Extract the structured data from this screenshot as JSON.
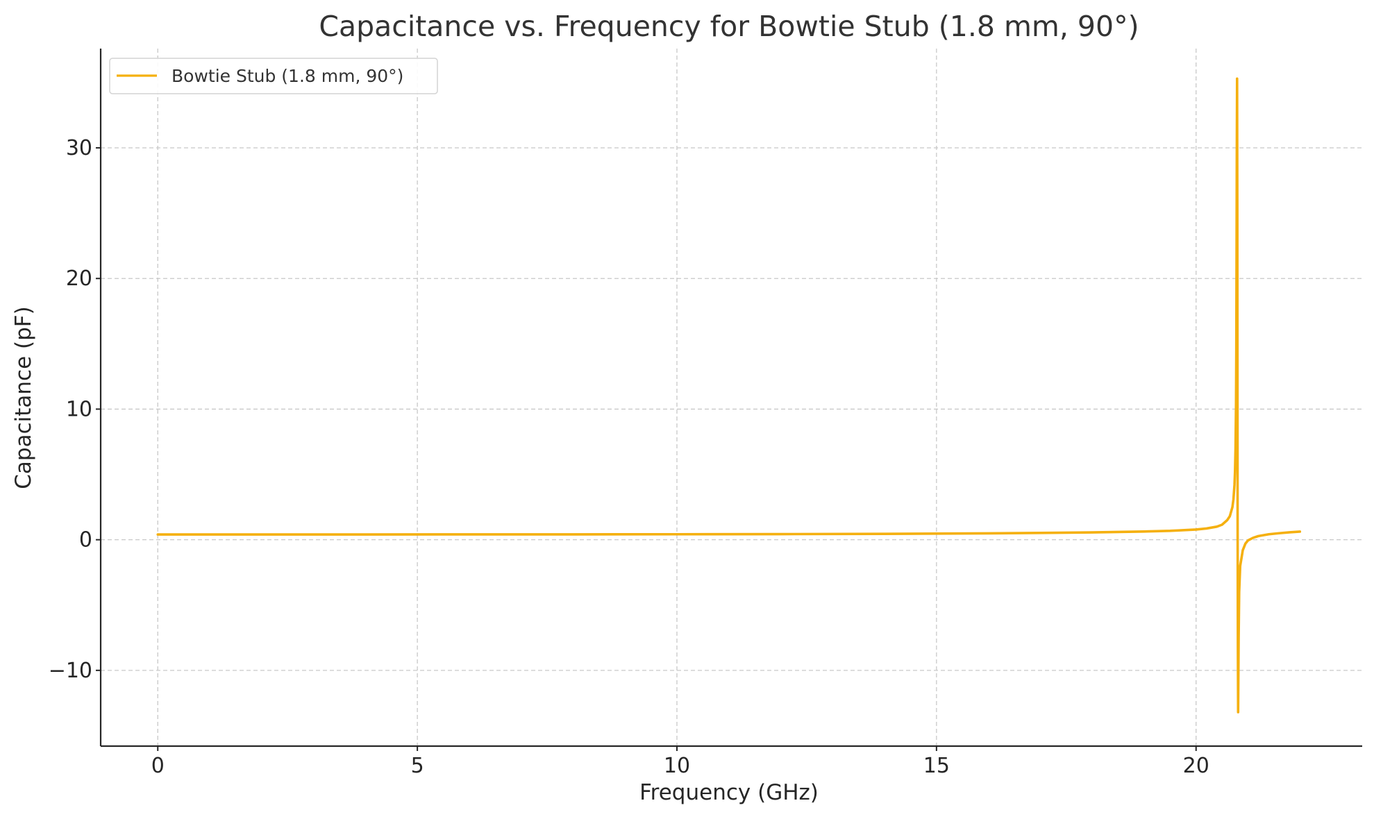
{
  "chart_data": {
    "type": "line",
    "title": "Capacitance vs. Frequency for Bowtie Stub (1.8 mm, 90°)",
    "xlabel": "Frequency (GHz)",
    "ylabel": "Capacitance (pF)",
    "xlim": [
      -1.1,
      23.2
    ],
    "ylim": [
      -15.8,
      37.6
    ],
    "xticks": [
      0,
      5,
      10,
      15,
      20
    ],
    "xtick_labels": [
      "0",
      "5",
      "10",
      "15",
      "20"
    ],
    "yticks": [
      -10,
      0,
      10,
      20,
      30
    ],
    "ytick_labels": [
      "−10",
      "0",
      "10",
      "20",
      "30"
    ],
    "grid": true,
    "legend_position": "top-left",
    "series": [
      {
        "name": "Bowtie Stub (1.8 mm, 90°)",
        "color": "#f5b00f",
        "x": [
          0,
          2,
          4,
          6,
          8,
          10,
          12,
          14,
          15,
          16,
          17,
          18,
          19,
          19.5,
          20,
          20.2,
          20.4,
          20.5,
          20.6,
          20.65,
          20.7,
          20.72,
          20.74,
          20.75,
          20.76,
          20.77,
          20.775,
          20.78,
          20.785,
          20.79,
          20.795,
          20.8,
          20.805,
          20.81,
          20.82,
          20.83,
          20.85,
          20.9,
          20.95,
          21.0,
          21.1,
          21.2,
          21.4,
          21.6,
          21.8,
          22.0
        ],
        "y": [
          0.4,
          0.4,
          0.4,
          0.41,
          0.41,
          0.42,
          0.43,
          0.45,
          0.47,
          0.49,
          0.52,
          0.56,
          0.63,
          0.68,
          0.78,
          0.86,
          1.0,
          1.15,
          1.5,
          1.8,
          2.5,
          3.1,
          4.2,
          5.2,
          7.0,
          10.5,
          14.5,
          22.0,
          30.0,
          35.3,
          25.0,
          2.0,
          -8.0,
          -13.2,
          -7.5,
          -4.0,
          -2.0,
          -0.8,
          -0.3,
          -0.05,
          0.15,
          0.28,
          0.42,
          0.5,
          0.57,
          0.62
        ]
      }
    ]
  }
}
